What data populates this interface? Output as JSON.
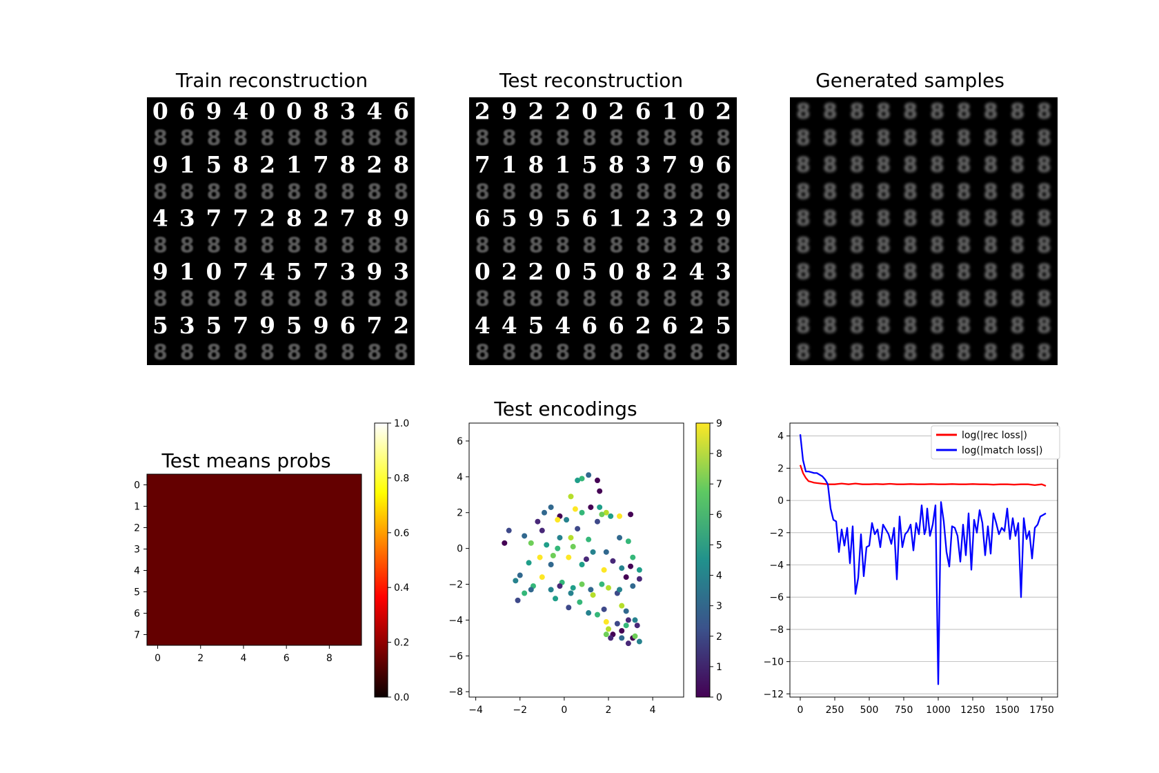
{
  "figure": {
    "titles": {
      "train": "Train reconstruction",
      "test": "Test reconstruction",
      "samples": "Generated samples",
      "means": "Test means probs",
      "encodings": "Test encodings"
    },
    "legend": {
      "rec": "log(|rec loss|)",
      "match": "log(|match loss|)"
    }
  },
  "chart_data": [
    {
      "type": "image-grid",
      "title": "Train reconstruction",
      "grid": [
        10,
        10
      ],
      "digit_rows": [
        [
          "0",
          "6",
          "9",
          "4",
          "0",
          "0",
          "8",
          "3",
          "4",
          "6"
        ],
        [
          "9",
          "1",
          "5",
          "8",
          "2",
          "1",
          "7",
          "8",
          "2",
          "8"
        ],
        [
          "4",
          "3",
          "7",
          "7",
          "2",
          "8",
          "2",
          "7",
          "8",
          "9"
        ],
        [
          "9",
          "1",
          "0",
          "7",
          "4",
          "5",
          "7",
          "3",
          "9",
          "3"
        ],
        [
          "5",
          "3",
          "5",
          "7",
          "9",
          "5",
          "9",
          "6",
          "7",
          "2"
        ]
      ]
    },
    {
      "type": "image-grid",
      "title": "Test reconstruction",
      "grid": [
        10,
        10
      ],
      "digit_rows": [
        [
          "2",
          "9",
          "2",
          "2",
          "0",
          "2",
          "6",
          "1",
          "0",
          "2"
        ],
        [
          "7",
          "1",
          "8",
          "1",
          "5",
          "8",
          "3",
          "7",
          "9",
          "6"
        ],
        [
          "6",
          "5",
          "9",
          "5",
          "6",
          "1",
          "2",
          "3",
          "2",
          "9"
        ],
        [
          "0",
          "2",
          "2",
          "0",
          "5",
          "0",
          "8",
          "2",
          "4",
          "3"
        ],
        [
          "4",
          "4",
          "5",
          "4",
          "6",
          "6",
          "2",
          "6",
          "2",
          "5"
        ]
      ]
    },
    {
      "type": "image-grid",
      "title": "Generated samples",
      "grid": [
        10,
        10
      ]
    },
    {
      "type": "heatmap",
      "title": "Test means probs",
      "rows": 8,
      "cols": 10,
      "value": 0.0,
      "xticks": [
        "0",
        "2",
        "4",
        "6",
        "8"
      ],
      "yticks": [
        "0",
        "1",
        "2",
        "3",
        "4",
        "5",
        "6",
        "7"
      ],
      "colorbar": {
        "range": [
          0,
          1
        ],
        "ticks": [
          "0.0",
          "0.2",
          "0.4",
          "0.6",
          "0.8",
          "1.0"
        ],
        "colormap": "hot"
      }
    },
    {
      "type": "scatter",
      "title": "Test encodings",
      "xlim": [
        -4.3,
        5.4
      ],
      "ylim": [
        -8.3,
        7
      ],
      "xticks": [
        "−4",
        "−2",
        "0",
        "2",
        "4"
      ],
      "yticks": [
        "−8",
        "−6",
        "−4",
        "−2",
        "0",
        "2",
        "4",
        "6"
      ],
      "colorbar": {
        "range": [
          0,
          9
        ],
        "ticks": [
          "0",
          "1",
          "2",
          "3",
          "4",
          "5",
          "6",
          "7",
          "8",
          "9"
        ],
        "colormap": "viridis"
      },
      "points": [
        [
          1.1,
          4.1,
          3
        ],
        [
          1.5,
          3.8,
          0
        ],
        [
          0.8,
          3.9,
          6
        ],
        [
          0.6,
          3.8,
          5
        ],
        [
          1.6,
          3.2,
          0
        ],
        [
          0.3,
          2.9,
          8
        ],
        [
          1.2,
          2.3,
          0
        ],
        [
          0.5,
          2.2,
          9
        ],
        [
          -0.9,
          2.0,
          3
        ],
        [
          -1.2,
          1.5,
          1
        ],
        [
          0.8,
          2.0,
          6
        ],
        [
          1.6,
          2.3,
          5
        ],
        [
          1.9,
          2.0,
          8
        ],
        [
          1.7,
          1.9,
          7
        ],
        [
          -0.2,
          1.8,
          0
        ],
        [
          0.1,
          1.6,
          4
        ],
        [
          0.6,
          1.1,
          2
        ],
        [
          1.5,
          1.5,
          2
        ],
        [
          2.1,
          1.8,
          5
        ],
        [
          2.5,
          1.8,
          9
        ],
        [
          3.0,
          1.9,
          0
        ],
        [
          -0.6,
          2.3,
          3
        ],
        [
          -0.3,
          1.6,
          9
        ],
        [
          -2.5,
          1.0,
          2
        ],
        [
          -1.8,
          0.7,
          3
        ],
        [
          -1.0,
          1.0,
          1
        ],
        [
          -0.2,
          0.6,
          4
        ],
        [
          0.3,
          0.6,
          8
        ],
        [
          1.1,
          0.5,
          6
        ],
        [
          2.5,
          0.6,
          3
        ],
        [
          -2.7,
          0.3,
          0
        ],
        [
          -1.5,
          0.3,
          7
        ],
        [
          -0.8,
          0.2,
          5
        ],
        [
          -0.3,
          0.0,
          6
        ],
        [
          0.4,
          0.1,
          7
        ],
        [
          1.3,
          -0.2,
          4
        ],
        [
          1.9,
          -0.2,
          3
        ],
        [
          2.9,
          0.4,
          6
        ],
        [
          -1.1,
          -0.5,
          9
        ],
        [
          -0.5,
          -0.4,
          7
        ],
        [
          0.2,
          -0.5,
          9
        ],
        [
          1.0,
          -0.6,
          1
        ],
        [
          2.2,
          -0.7,
          1
        ],
        [
          3.1,
          -0.5,
          6
        ],
        [
          -1.6,
          -0.8,
          5
        ],
        [
          -0.6,
          -0.9,
          3
        ],
        [
          0.8,
          -0.9,
          5
        ],
        [
          1.8,
          -1.2,
          9
        ],
        [
          2.6,
          -1.1,
          4
        ],
        [
          3.0,
          -1.0,
          0
        ],
        [
          3.4,
          -1.2,
          5
        ],
        [
          -2.0,
          -1.5,
          3
        ],
        [
          -1.0,
          -1.6,
          9
        ],
        [
          -0.1,
          -1.9,
          6
        ],
        [
          0.8,
          -2.0,
          7
        ],
        [
          1.7,
          -2.0,
          6
        ],
        [
          2.8,
          -1.6,
          0
        ],
        [
          3.4,
          -1.7,
          1
        ],
        [
          -2.2,
          -1.8,
          4
        ],
        [
          -1.4,
          -2.1,
          6
        ],
        [
          0.4,
          -2.2,
          5
        ],
        [
          1.2,
          -2.3,
          3
        ],
        [
          2.0,
          -2.2,
          8
        ],
        [
          2.4,
          -2.5,
          2
        ],
        [
          3.1,
          -2.1,
          3
        ],
        [
          -1.5,
          -2.3,
          3
        ],
        [
          -0.6,
          -2.3,
          4
        ],
        [
          0.3,
          -2.5,
          4
        ],
        [
          1.3,
          -2.6,
          8
        ],
        [
          2.5,
          -2.3,
          4
        ],
        [
          -1.8,
          -2.5,
          6
        ],
        [
          -0.4,
          -2.8,
          5
        ],
        [
          0.7,
          -3.0,
          6
        ],
        [
          1.8,
          -3.4,
          2
        ],
        [
          2.6,
          -3.2,
          8
        ],
        [
          -2.1,
          -2.9,
          2
        ],
        [
          0.2,
          -3.3,
          2
        ],
        [
          1.1,
          -3.6,
          4
        ],
        [
          2.8,
          -3.5,
          3
        ],
        [
          2.9,
          -4.0,
          1
        ],
        [
          1.5,
          -3.7,
          6
        ],
        [
          3.2,
          -4.0,
          4
        ],
        [
          3.3,
          -4.3,
          1
        ],
        [
          1.9,
          -4.8,
          7
        ],
        [
          2.2,
          -4.8,
          0
        ],
        [
          2.6,
          -5.0,
          3
        ],
        [
          2.0,
          -4.5,
          8
        ],
        [
          2.1,
          -5.0,
          1
        ],
        [
          2.6,
          -4.6,
          0
        ],
        [
          3.1,
          -5.0,
          0
        ],
        [
          3.4,
          -5.2,
          4
        ],
        [
          3.2,
          -4.9,
          7
        ],
        [
          2.9,
          -5.3,
          1
        ],
        [
          -0.2,
          -2.1,
          1
        ],
        [
          1.9,
          -4.1,
          9
        ],
        [
          2.4,
          -4.2,
          2
        ],
        [
          2.8,
          -4.3,
          6
        ]
      ]
    },
    {
      "type": "line",
      "xlim": [
        -75,
        1865
      ],
      "ylim": [
        -12.2,
        4.8
      ],
      "xticks": [
        "0",
        "250",
        "500",
        "750",
        "1000",
        "1250",
        "1500",
        "1750"
      ],
      "yticks": [
        "−12",
        "−10",
        "−8",
        "−6",
        "−4",
        "−2",
        "0",
        "2",
        "4"
      ],
      "grid": "y",
      "legend_position": "top-right",
      "series": [
        {
          "name": "log(|rec loss|)",
          "color": "#ff0000",
          "x": [
            0,
            20,
            40,
            60,
            80,
            100,
            150,
            200,
            250,
            300,
            350,
            400,
            450,
            500,
            550,
            600,
            650,
            700,
            750,
            800,
            850,
            900,
            950,
            1000,
            1050,
            1100,
            1150,
            1200,
            1250,
            1300,
            1350,
            1400,
            1450,
            1500,
            1550,
            1600,
            1650,
            1700,
            1750,
            1780
          ],
          "y": [
            2.2,
            1.7,
            1.4,
            1.2,
            1.15,
            1.1,
            1.05,
            1.0,
            1.0,
            1.05,
            1.0,
            1.05,
            1.0,
            1.0,
            1.02,
            1.0,
            1.03,
            1.0,
            1.0,
            1.02,
            1.0,
            1.0,
            1.02,
            1.0,
            1.0,
            1.02,
            1.0,
            1.0,
            1.02,
            1.0,
            1.0,
            0.98,
            1.0,
            1.0,
            0.98,
            1.0,
            1.0,
            0.95,
            1.0,
            0.9
          ]
        },
        {
          "name": "log(|match loss|)",
          "color": "#0000ff",
          "x": [
            0,
            20,
            40,
            60,
            80,
            100,
            120,
            140,
            160,
            180,
            200,
            220,
            240,
            260,
            280,
            300,
            320,
            340,
            360,
            380,
            400,
            420,
            440,
            460,
            480,
            500,
            520,
            540,
            560,
            580,
            600,
            620,
            640,
            660,
            680,
            700,
            720,
            740,
            760,
            780,
            800,
            820,
            840,
            860,
            880,
            900,
            910,
            920,
            940,
            960,
            980,
            1000,
            1020,
            1040,
            1060,
            1080,
            1100,
            1120,
            1140,
            1160,
            1180,
            1200,
            1220,
            1240,
            1260,
            1280,
            1300,
            1320,
            1340,
            1360,
            1380,
            1400,
            1420,
            1440,
            1460,
            1480,
            1500,
            1520,
            1540,
            1560,
            1580,
            1600,
            1620,
            1640,
            1660,
            1680,
            1700,
            1720,
            1740,
            1760,
            1780
          ],
          "y": [
            4.1,
            2.5,
            1.8,
            1.8,
            1.75,
            1.7,
            1.7,
            1.6,
            1.5,
            1.3,
            1.0,
            -0.5,
            -1.2,
            -1.3,
            -3.2,
            -1.8,
            -2.8,
            -1.7,
            -3.9,
            -1.6,
            -5.8,
            -4.8,
            -2.1,
            -4.7,
            -2.9,
            -2.8,
            -1.4,
            -2.1,
            -1.8,
            -2.9,
            -1.5,
            -1.8,
            -2.1,
            -2.7,
            -1.7,
            -4.9,
            -1.0,
            -2.9,
            -2.1,
            -1.9,
            -1.5,
            -3.1,
            -1.4,
            -2.1,
            -0.3,
            -2.1,
            -1.8,
            -0.5,
            -2.2,
            -1.5,
            -0.3,
            -11.4,
            -0.1,
            -1.3,
            -3.2,
            -4.1,
            -1.6,
            -1.7,
            -2.2,
            -3.8,
            -1.5,
            -3.4,
            -0.8,
            -4.3,
            -1.2,
            -2.0,
            -0.6,
            -1.4,
            -3.4,
            -1.6,
            -3.3,
            -0.8,
            -1.4,
            -2.1,
            -1.7,
            -1.9,
            -0.5,
            -2.4,
            -1.1,
            -2.2,
            -1.4,
            -6.0,
            -1.1,
            -2.4,
            -1.9,
            -3.6,
            -1.7,
            -1.5,
            -1.0,
            -0.9,
            -0.8
          ]
        }
      ]
    }
  ]
}
